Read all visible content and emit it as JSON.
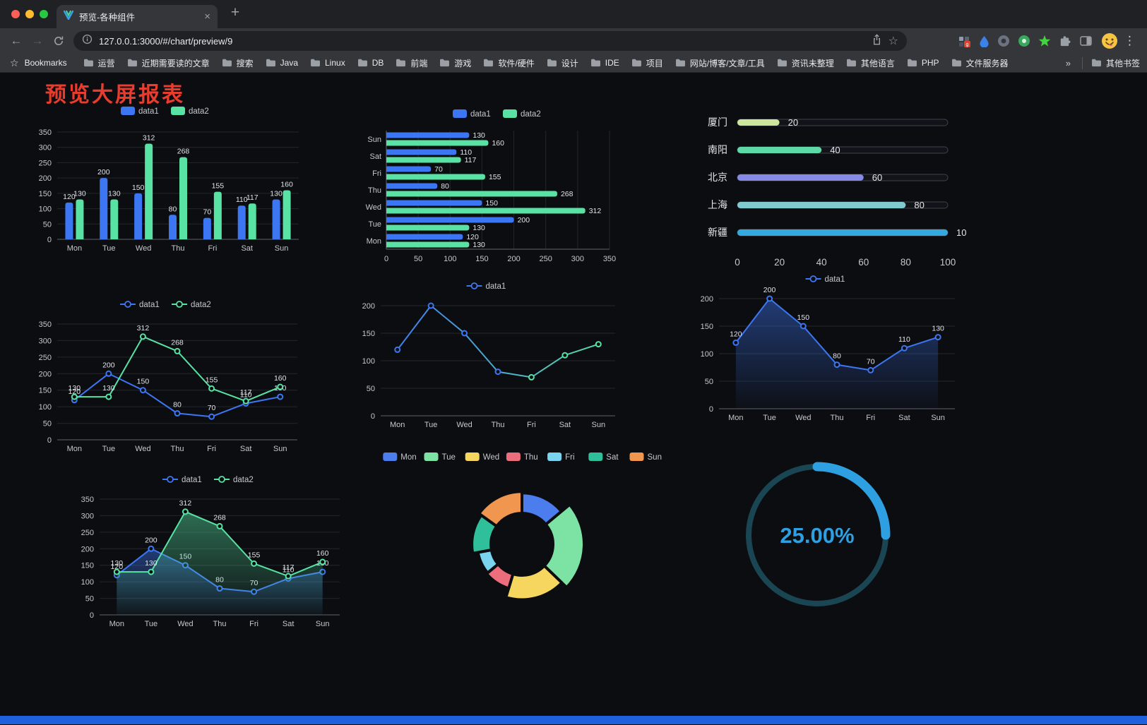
{
  "window": {
    "tab_title": "预览-各种组件",
    "url": "127.0.0.1:3000/#/chart/preview/9",
    "bookmarks_label": "Bookmarks",
    "bookmarks": [
      "运营",
      "近期需要读的文章",
      "搜索",
      "Java",
      "Linux",
      "DB",
      "前端",
      "游戏",
      "软件/硬件",
      "设计",
      "IDE",
      "项目",
      "网站/博客/文章/工具",
      "资讯未整理",
      "其他语言",
      "PHP",
      "文件服务器"
    ],
    "bookmarks_overflow": "»",
    "other_bookmarks": "其他书签"
  },
  "page": {
    "title": "预览大屏报表",
    "accent_red": "#e73c2e",
    "background": "#0c0d10",
    "footer_color": "#2160dd"
  },
  "chart_data": [
    {
      "id": "grouped-bar",
      "type": "bar",
      "categories": [
        "Mon",
        "Tue",
        "Wed",
        "Thu",
        "Fri",
        "Sat",
        "Sun"
      ],
      "series": [
        {
          "name": "data1",
          "color": "#3D76F2",
          "values": [
            120,
            200,
            150,
            80,
            70,
            110,
            130
          ]
        },
        {
          "name": "data2",
          "color": "#58E2A4",
          "values": [
            130,
            130,
            312,
            268,
            155,
            117,
            160
          ]
        }
      ],
      "ylim": [
        0,
        350
      ],
      "ystep": 50,
      "legend_position": "top",
      "grid": true
    },
    {
      "id": "horizontal-bar",
      "type": "hbar",
      "categories": [
        "Mon",
        "Tue",
        "Wed",
        "Thu",
        "Fri",
        "Sat",
        "Sun"
      ],
      "series": [
        {
          "name": "data1",
          "color": "#3D76F2",
          "values": [
            120,
            200,
            150,
            80,
            70,
            110,
            130
          ]
        },
        {
          "name": "data2",
          "color": "#58E2A4",
          "values": [
            130,
            130,
            312,
            268,
            155,
            117,
            160
          ]
        }
      ],
      "xlim": [
        0,
        350
      ],
      "xstep": 50,
      "legend_position": "top",
      "grid": true
    },
    {
      "id": "city-progress-bars",
      "type": "progress",
      "min": 0,
      "max": 100,
      "axis": [
        0,
        20,
        40,
        60,
        80,
        100
      ],
      "rows": [
        {
          "label": "厦门",
          "value": 20,
          "color": "#CBE79B"
        },
        {
          "label": "南阳",
          "value": 40,
          "color": "#5FD8A8"
        },
        {
          "label": "北京",
          "value": 60,
          "color": "#8689E6"
        },
        {
          "label": "上海",
          "value": 80,
          "color": "#7FC9CF"
        },
        {
          "label": "新疆",
          "value": 100,
          "color": "#34A9E0"
        }
      ]
    },
    {
      "id": "line-two-series",
      "type": "line",
      "labels": true,
      "categories": [
        "Mon",
        "Tue",
        "Wed",
        "Thu",
        "Fri",
        "Sat",
        "Sun"
      ],
      "series": [
        {
          "name": "data1",
          "color": "#3D76F2",
          "values": [
            120,
            200,
            150,
            80,
            70,
            110,
            130
          ]
        },
        {
          "name": "data2",
          "color": "#58E2A4",
          "values": [
            130,
            130,
            312,
            268,
            155,
            117,
            160
          ]
        }
      ],
      "ylim": [
        0,
        350
      ],
      "ystep": 50,
      "legend_position": "top",
      "grid": true
    },
    {
      "id": "gradient-line",
      "type": "line",
      "labels": false,
      "categories": [
        "Mon",
        "Tue",
        "Wed",
        "Thu",
        "Fri",
        "Sat",
        "Sun"
      ],
      "series": [
        {
          "name": "data1",
          "color": "#3D76F2",
          "gradient": [
            "#3D76F2",
            "#58E2A4"
          ],
          "values": [
            120,
            200,
            150,
            80,
            70,
            110,
            130
          ]
        }
      ],
      "ylim": [
        0,
        200
      ],
      "ystep": 50,
      "legend_position": "top",
      "grid": true
    },
    {
      "id": "area-single",
      "type": "line",
      "area": true,
      "labels": true,
      "categories": [
        "Mon",
        "Tue",
        "Wed",
        "Thu",
        "Fri",
        "Sat",
        "Sun"
      ],
      "series": [
        {
          "name": "data1",
          "color": "#3D76F2",
          "values": [
            120,
            200,
            150,
            80,
            70,
            110,
            130
          ]
        }
      ],
      "ylim": [
        0,
        200
      ],
      "ystep": 50,
      "legend_position": "top",
      "grid": true
    },
    {
      "id": "area-two-series",
      "type": "line",
      "area": true,
      "labels": true,
      "categories": [
        "Mon",
        "Tue",
        "Wed",
        "Thu",
        "Fri",
        "Sat",
        "Sun"
      ],
      "series": [
        {
          "name": "data1",
          "color": "#3D76F2",
          "values": [
            120,
            200,
            150,
            80,
            70,
            110,
            130
          ]
        },
        {
          "name": "data2",
          "color": "#58E2A4",
          "values": [
            130,
            130,
            312,
            268,
            155,
            117,
            160
          ]
        }
      ],
      "ylim": [
        0,
        350
      ],
      "ystep": 50,
      "legend_position": "top",
      "grid": true
    },
    {
      "id": "rose-pie",
      "type": "rose",
      "legend_position": "top",
      "items": [
        {
          "name": "Mon",
          "value": 120,
          "color": "#4B7DEE"
        },
        {
          "name": "Tue",
          "value": 200,
          "color": "#7CE3A4"
        },
        {
          "name": "Wed",
          "value": 150,
          "color": "#F6D65F"
        },
        {
          "name": "Thu",
          "value": 80,
          "color": "#EC6E7D"
        },
        {
          "name": "Fri",
          "value": 70,
          "color": "#7AD4F0"
        },
        {
          "name": "Sat",
          "value": 110,
          "color": "#2FBF9B"
        },
        {
          "name": "Sun",
          "value": 130,
          "color": "#F0964F"
        }
      ]
    },
    {
      "id": "progress-ring",
      "type": "gauge",
      "value": 25,
      "label": "25.00%",
      "color": "#2E9FE0",
      "track_color": "#1A4654"
    }
  ]
}
